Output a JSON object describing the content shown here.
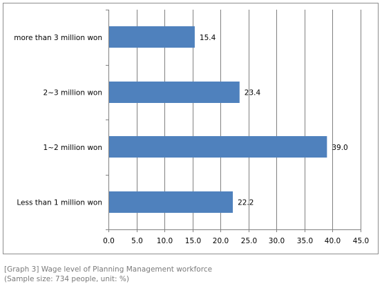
{
  "chart_data": {
    "type": "bar",
    "orientation": "horizontal",
    "categories": [
      "more than 3 million won",
      "2~3 million won",
      "1~2 million won",
      "Less than 1 million won"
    ],
    "values": [
      15.4,
      23.4,
      39.0,
      22.2
    ],
    "value_labels": [
      "15.4",
      "23.4",
      "39.0",
      "22.2"
    ],
    "xlim": [
      0,
      45
    ],
    "x_ticks": [
      "0.0",
      "5.0",
      "10.0",
      "15.0",
      "20.0",
      "25.0",
      "30.0",
      "35.0",
      "40.0",
      "45.0"
    ],
    "grid": "vertical",
    "legend": "none",
    "bar_color": "#4f81bd",
    "grid_color": "#808080"
  },
  "caption": {
    "line1": "[Graph 3] Wage level of Planning Management workforce",
    "line2": "(Sample size: 734 people, unit: %)"
  }
}
